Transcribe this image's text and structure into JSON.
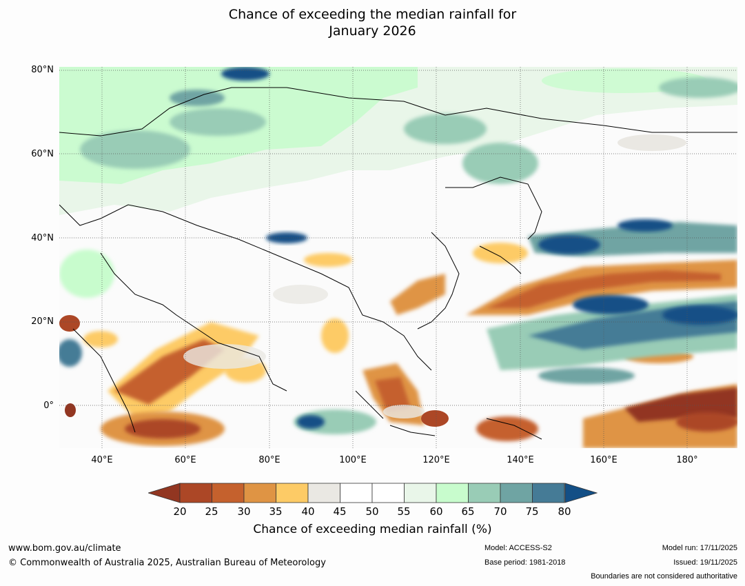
{
  "title": {
    "line1": "Chance of exceeding the median rainfall for",
    "line2": "January 2026"
  },
  "map": {
    "lat_labels": [
      "80°N",
      "60°N",
      "40°N",
      "20°N",
      "0°"
    ],
    "lon_labels": [
      "40°E",
      "60°E",
      "80°E",
      "100°E",
      "120°E",
      "140°E",
      "160°E",
      "180°"
    ]
  },
  "colorbar": {
    "label": "Chance of exceeding median rainfall (%)",
    "ticks": [
      "20",
      "25",
      "30",
      "35",
      "40",
      "45",
      "50",
      "55",
      "60",
      "65",
      "70",
      "75",
      "80"
    ],
    "low_color": "#923621",
    "high_color": "#134f86",
    "colors": [
      "#ac4726",
      "#c5612d",
      "#df9444",
      "#fdcb66",
      "#eae8e3",
      "#ffffff",
      "#ffffff",
      "#e9f6e9",
      "#c8fccd",
      "#99ccb6",
      "#6fa4a3",
      "#457b96"
    ]
  },
  "footer": {
    "url": "www.bom.gov.au/climate",
    "copyright": "© Commonwealth of Australia 2025, Australian Bureau of Meteorology",
    "model": "Model: ACCESS-S2",
    "base_period": "Base period: 1981-2018",
    "model_run": "Model run: 17/11/2025",
    "issued": "Issued: 19/11/2025",
    "disclaimer": "Boundaries are not considered authoritative"
  }
}
